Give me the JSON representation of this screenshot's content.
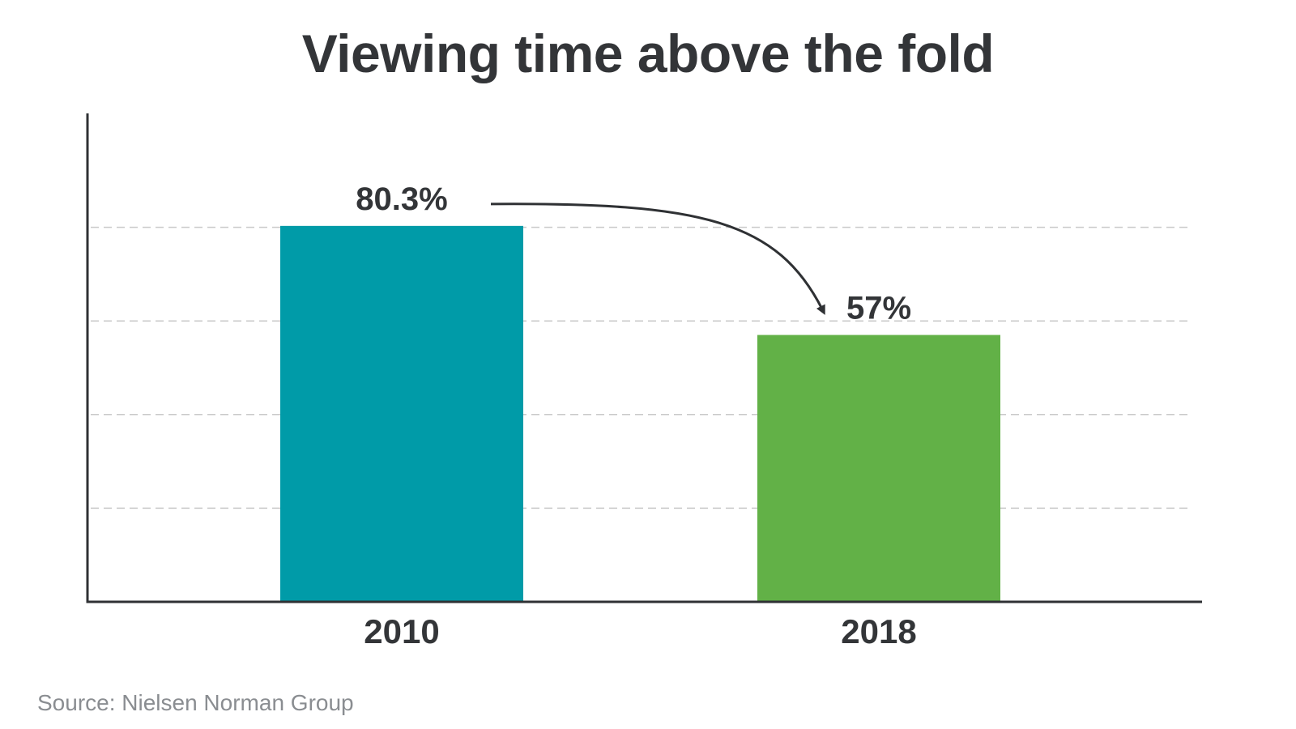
{
  "chart_data": {
    "type": "bar",
    "title": "Viewing time above the fold",
    "categories": [
      "2010",
      "2018"
    ],
    "values": [
      80.3,
      57
    ],
    "data_labels": [
      "80.3%",
      "57%"
    ],
    "xlabel": "",
    "ylabel": "",
    "ylim": [
      0,
      100
    ],
    "y_gridlines": [
      20,
      40,
      60,
      80
    ],
    "y_tick_labels_shown": false,
    "grid": true,
    "grid_style": "dashed",
    "legend": "none",
    "bar_colors": [
      "#009ba8",
      "#62b147"
    ],
    "axis_color": "#2f3134",
    "annotation": {
      "type": "curved-arrow",
      "from": "2010",
      "to": "2018"
    }
  },
  "source": "Source: Nielsen Norman Group",
  "colors": {
    "title": "#333538",
    "label": "#333538",
    "source": "#8a8d91",
    "grid": "#c9c9c9"
  }
}
